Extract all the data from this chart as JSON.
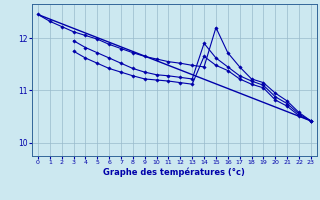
{
  "title": "",
  "xlabel": "Graphe des températures (°c)",
  "background_color": "#cce8f0",
  "grid_color": "#99bbcc",
  "line_color": "#0000aa",
  "xlim": [
    -0.5,
    23.5
  ],
  "ylim": [
    9.75,
    12.65
  ],
  "yticks": [
    10,
    11,
    12
  ],
  "xticks": [
    0,
    1,
    2,
    3,
    4,
    5,
    6,
    7,
    8,
    9,
    10,
    11,
    12,
    13,
    14,
    15,
    16,
    17,
    18,
    19,
    20,
    21,
    22,
    23
  ],
  "series": [
    {
      "x": [
        0,
        23
      ],
      "y": [
        12.45,
        10.42
      ],
      "marker": null,
      "lw": 1.0
    },
    {
      "x": [
        0,
        1,
        2,
        3,
        4,
        5,
        6,
        7,
        8,
        9,
        10,
        11,
        12,
        13,
        14,
        15,
        16,
        17,
        18,
        19,
        20,
        21,
        22,
        23
      ],
      "y": [
        12.45,
        12.32,
        12.22,
        12.12,
        12.05,
        11.98,
        11.88,
        11.8,
        11.72,
        11.65,
        11.6,
        11.55,
        11.52,
        11.48,
        11.45,
        12.2,
        11.72,
        11.45,
        11.22,
        11.15,
        10.95,
        10.8,
        10.58,
        10.42
      ],
      "marker": "D",
      "lw": 0.8
    },
    {
      "x": [
        3,
        4,
        5,
        6,
        7,
        8,
        9,
        10,
        11,
        12,
        13,
        14,
        15,
        16,
        17,
        18,
        19,
        20,
        21,
        22,
        23
      ],
      "y": [
        11.95,
        11.82,
        11.72,
        11.62,
        11.52,
        11.42,
        11.35,
        11.3,
        11.28,
        11.25,
        11.22,
        11.9,
        11.62,
        11.45,
        11.28,
        11.18,
        11.1,
        10.88,
        10.75,
        10.55,
        10.42
      ],
      "marker": "D",
      "lw": 0.8
    },
    {
      "x": [
        3,
        4,
        5,
        6,
        7,
        8,
        9,
        10,
        11,
        12,
        13,
        14,
        15,
        16,
        17,
        18,
        19,
        20,
        21,
        22,
        23
      ],
      "y": [
        11.75,
        11.62,
        11.52,
        11.42,
        11.35,
        11.28,
        11.22,
        11.2,
        11.18,
        11.15,
        11.12,
        11.65,
        11.48,
        11.38,
        11.22,
        11.12,
        11.05,
        10.82,
        10.7,
        10.52,
        10.42
      ],
      "marker": "D",
      "lw": 0.8
    }
  ]
}
